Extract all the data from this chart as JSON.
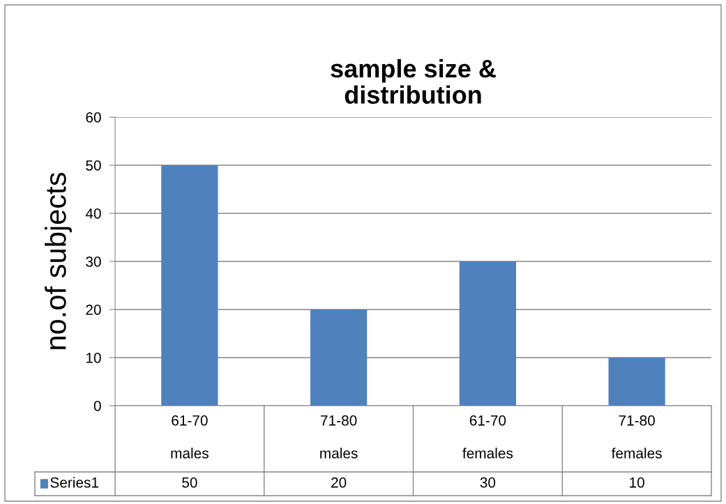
{
  "chart_data": {
    "type": "bar",
    "title": "sample size &\ndistribution",
    "ylabel": "no.of subjects",
    "categories": [
      "61-70\nmales",
      "71-80\nmales",
      "61-70\nfemales",
      "71-80\nfemales"
    ],
    "series": [
      {
        "name": "Series1",
        "color": "#4f81bd",
        "values": [
          50,
          20,
          30,
          10
        ]
      }
    ],
    "ylim": [
      0,
      60
    ],
    "yticks": [
      0,
      10,
      20,
      30,
      40,
      50,
      60
    ],
    "grid": "y",
    "data_labels": true,
    "legend": "bottom"
  }
}
